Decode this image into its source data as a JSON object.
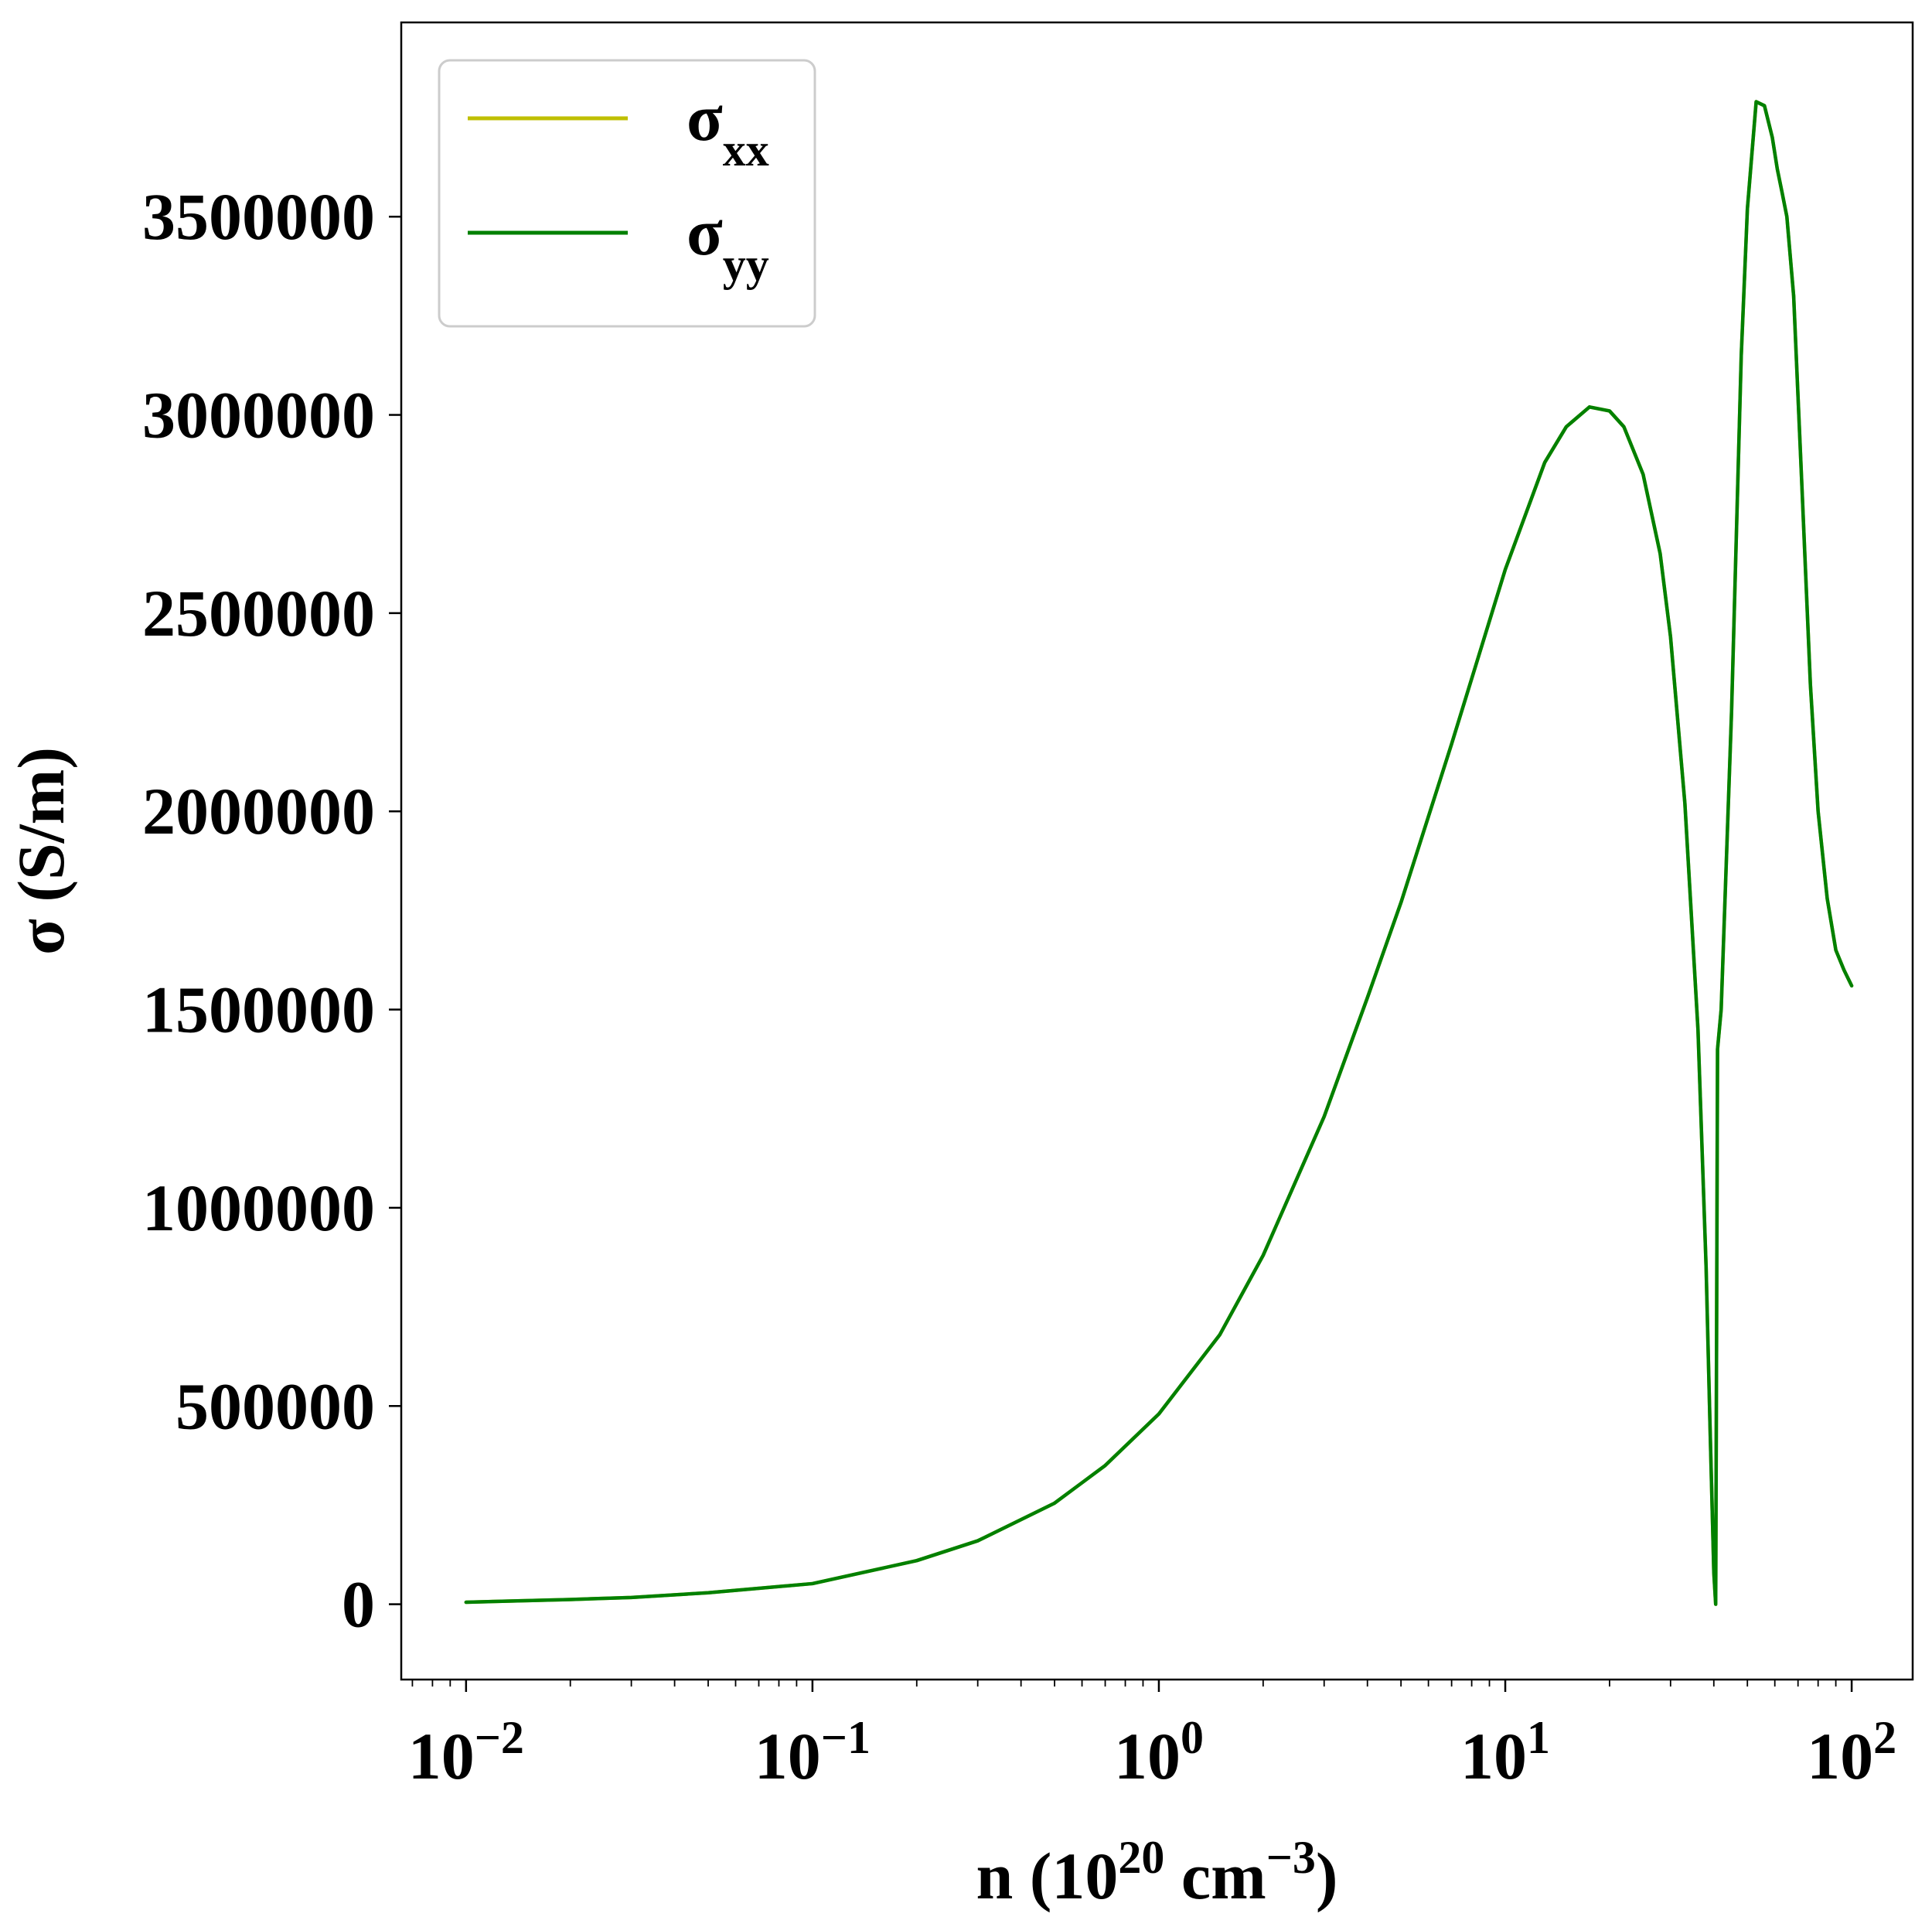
{
  "chart_data": {
    "type": "line",
    "xscale": "log",
    "xlim": [
      0.0065,
      150
    ],
    "ylim": [
      -190000,
      3990000
    ],
    "x_ticks": [
      {
        "value": 0.01,
        "exp": "−2"
      },
      {
        "value": 0.1,
        "exp": "−1"
      },
      {
        "value": 1,
        "exp": "0"
      },
      {
        "value": 10,
        "exp": "1"
      },
      {
        "value": 100,
        "exp": "2"
      }
    ],
    "x_tick_base": "10",
    "y_ticks": [
      0,
      500000,
      1000000,
      1500000,
      2000000,
      2500000,
      3000000,
      3500000
    ],
    "y_tick_labels": [
      "0",
      "500000",
      "1000000",
      "1500000",
      "2000000",
      "2500000",
      "3000000",
      "3500000"
    ],
    "xlabel": {
      "prefix": "n (10",
      "sup1": "20",
      "mid": " cm",
      "sup2": "−3",
      "suffix": ")"
    },
    "ylabel": "σ (S/m)",
    "legend_placement": "upper-left",
    "series": [
      {
        "name": "σ",
        "subscript": "xx",
        "color": "#bfbf00",
        "x": [
          0.01,
          0.02,
          0.03,
          0.05,
          0.1,
          0.2,
          0.3,
          0.5,
          0.7,
          1,
          1.5,
          2,
          3,
          4,
          5,
          7,
          10,
          13,
          15,
          17.5,
          20,
          22,
          25,
          28,
          30,
          33,
          36,
          38,
          39,
          40,
          40.5,
          41,
          42,
          45,
          48,
          50,
          53,
          56,
          59,
          61,
          63,
          65,
          68,
          72,
          76,
          80,
          85,
          90,
          95,
          100
        ],
        "y": [
          5000,
          12000,
          17000,
          29000,
          52000,
          110000,
          160000,
          255000,
          350000,
          480000,
          680000,
          880000,
          1230000,
          1530000,
          1770000,
          2170000,
          2610000,
          2880000,
          2970000,
          3020000,
          3010000,
          2970000,
          2850000,
          2650000,
          2440000,
          2020000,
          1450000,
          850000,
          450000,
          80000,
          0,
          1400000,
          1500000,
          2250000,
          3150000,
          3520000,
          3790000,
          3780000,
          3700000,
          3620000,
          3560000,
          3500000,
          3300000,
          2800000,
          2320000,
          2000000,
          1780000,
          1650000,
          1600000,
          1560000
        ]
      },
      {
        "name": "σ",
        "subscript": "yy",
        "color": "#008000",
        "x": [
          0.01,
          0.02,
          0.03,
          0.05,
          0.1,
          0.2,
          0.3,
          0.5,
          0.7,
          1,
          1.5,
          2,
          3,
          4,
          5,
          7,
          10,
          13,
          15,
          17.5,
          20,
          22,
          25,
          28,
          30,
          33,
          36,
          38,
          39,
          40,
          40.5,
          41,
          42,
          45,
          48,
          50,
          53,
          56,
          59,
          61,
          63,
          65,
          68,
          72,
          76,
          80,
          85,
          90,
          95,
          100
        ],
        "y": [
          5000,
          12000,
          17000,
          29000,
          52000,
          110000,
          160000,
          255000,
          350000,
          480000,
          680000,
          880000,
          1230000,
          1530000,
          1770000,
          2170000,
          2610000,
          2880000,
          2970000,
          3020000,
          3010000,
          2970000,
          2850000,
          2650000,
          2440000,
          2020000,
          1450000,
          850000,
          450000,
          80000,
          0,
          1400000,
          1500000,
          2250000,
          3150000,
          3520000,
          3790000,
          3780000,
          3700000,
          3620000,
          3560000,
          3500000,
          3300000,
          2800000,
          2320000,
          2000000,
          1780000,
          1650000,
          1600000,
          1560000
        ]
      }
    ]
  }
}
